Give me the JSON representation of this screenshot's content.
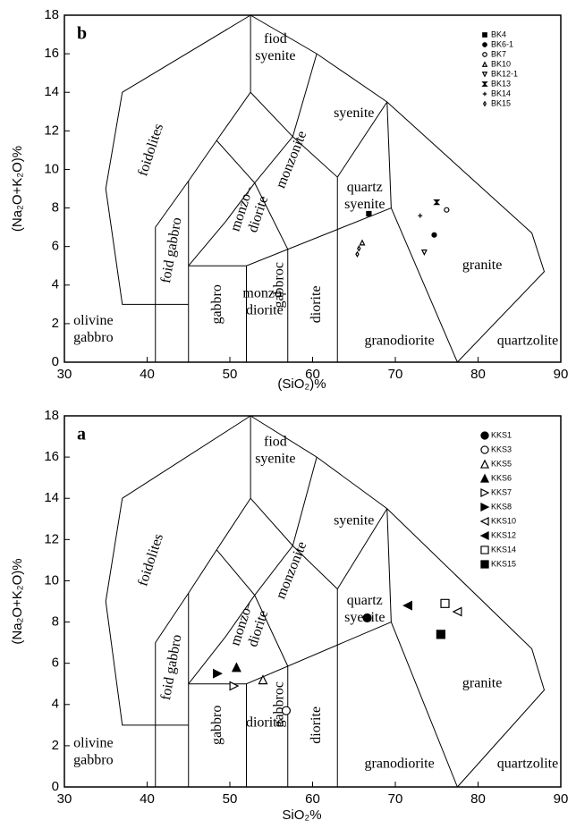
{
  "chart_data": [
    {
      "type": "scatter",
      "panel_label": "b",
      "xlabel": "(SiO₂)%",
      "ylabel": "(Na₂O+K₂O)%",
      "xlim": [
        30,
        90
      ],
      "ylim": [
        0,
        18
      ],
      "xticks": [
        30,
        40,
        50,
        60,
        70,
        80,
        90
      ],
      "yticks": [
        0,
        2,
        4,
        6,
        8,
        10,
        12,
        14,
        16,
        18
      ],
      "legend": "upper right",
      "marker_size": 5,
      "field_labels": [
        [
          "foidolites"
        ],
        [
          "fiod",
          "syenite"
        ],
        [
          "syenite"
        ],
        [
          "monzonite"
        ],
        [
          "quartz",
          "syenite"
        ],
        [
          "foid gabbro"
        ],
        [
          "monzo–",
          "diorite"
        ],
        [
          "gabbro"
        ],
        [
          "gabbroc"
        ],
        [
          "diorite"
        ],
        [
          "monzo-",
          "diorite"
        ],
        [
          "granodiorite"
        ],
        [
          "granite"
        ],
        [
          "quartzolite"
        ],
        [
          "olivine",
          "gabbro"
        ]
      ],
      "series": [
        {
          "name": "BK4",
          "marker": "square",
          "color": "#000000",
          "x": [
            66.8
          ],
          "values": [
            7.7
          ]
        },
        {
          "name": "BK6-1",
          "marker": "circle",
          "color": "#000000",
          "x": [
            74.7
          ],
          "values": [
            6.6
          ]
        },
        {
          "name": "BK7",
          "marker": "circle-open",
          "color": "#000000",
          "x": [
            76.2
          ],
          "values": [
            7.9
          ]
        },
        {
          "name": "BK10",
          "marker": "triangle-open",
          "color": "#000000",
          "x": [
            66
          ],
          "values": [
            6.2
          ]
        },
        {
          "name": "BK12-1",
          "marker": "triangle-down-open",
          "color": "#000000",
          "x": [
            73.5
          ],
          "values": [
            5.7
          ]
        },
        {
          "name": "BK13",
          "marker": "bowtie",
          "color": "#000000",
          "x": [
            75
          ],
          "values": [
            8.3
          ]
        },
        {
          "name": "BK14",
          "marker": "plus",
          "color": "#000000",
          "x": [
            73
          ],
          "values": [
            7.6
          ]
        },
        {
          "name": "BK15",
          "marker": "diamond-open",
          "color": "#000000",
          "x": [
            65.4,
            65.6
          ],
          "values": [
            5.6,
            5.9
          ]
        }
      ]
    },
    {
      "type": "scatter",
      "panel_label": "a",
      "xlabel": "SiO₂%",
      "ylabel": "(Na₂O+K₂O)%",
      "xlim": [
        30,
        90
      ],
      "ylim": [
        0,
        18
      ],
      "xticks": [
        30,
        40,
        50,
        60,
        70,
        80,
        90
      ],
      "yticks": [
        0,
        2,
        4,
        6,
        8,
        10,
        12,
        14,
        16,
        18
      ],
      "legend": "upper right",
      "marker_size": 9,
      "field_labels": [
        [
          "foidolites"
        ],
        [
          "fiod",
          "syenite"
        ],
        [
          "syenite"
        ],
        [
          "monzonite"
        ],
        [
          "quartz",
          "syenite"
        ],
        [
          "foid gabbro"
        ],
        [
          "monzo–",
          "diorite"
        ],
        [
          "gabbro"
        ],
        [
          "gabbroc"
        ],
        [
          "diorite"
        ],
        [
          "diorite"
        ],
        [
          "granodiorite"
        ],
        [
          "granite"
        ],
        [
          "quartzolite"
        ],
        [
          "olivine",
          "gabbro"
        ]
      ],
      "series": [
        {
          "name": "KKS1",
          "marker": "circle",
          "color": "#000000",
          "x": [
            66.6
          ],
          "values": [
            8.2
          ]
        },
        {
          "name": "KKS3",
          "marker": "circle-open",
          "color": "#000000",
          "x": [
            56.8
          ],
          "values": [
            3.7
          ]
        },
        {
          "name": "KKS5",
          "marker": "triangle-open",
          "color": "#000000",
          "x": [
            54
          ],
          "values": [
            5.2
          ]
        },
        {
          "name": "KKS6",
          "marker": "triangle",
          "color": "#000000",
          "x": [
            50.8
          ],
          "values": [
            5.8
          ]
        },
        {
          "name": "KKS7",
          "marker": "triangle-right-open",
          "color": "#000000",
          "x": [
            50.5
          ],
          "values": [
            4.9
          ]
        },
        {
          "name": "KKS8",
          "marker": "triangle-right",
          "color": "#000000",
          "x": [
            48.5
          ],
          "values": [
            5.5
          ]
        },
        {
          "name": "KKS10",
          "marker": "triangle-left-open",
          "color": "#000000",
          "x": [
            77.5
          ],
          "values": [
            8.5
          ]
        },
        {
          "name": "KKS12",
          "marker": "triangle-left",
          "color": "#000000",
          "x": [
            71.5
          ],
          "values": [
            8.8
          ]
        },
        {
          "name": "KKS14",
          "marker": "square-open",
          "color": "#000000",
          "x": [
            76
          ],
          "values": [
            8.9
          ]
        },
        {
          "name": "KKS15",
          "marker": "square",
          "color": "#000000",
          "x": [
            75.5
          ],
          "values": [
            7.4
          ]
        }
      ]
    }
  ]
}
